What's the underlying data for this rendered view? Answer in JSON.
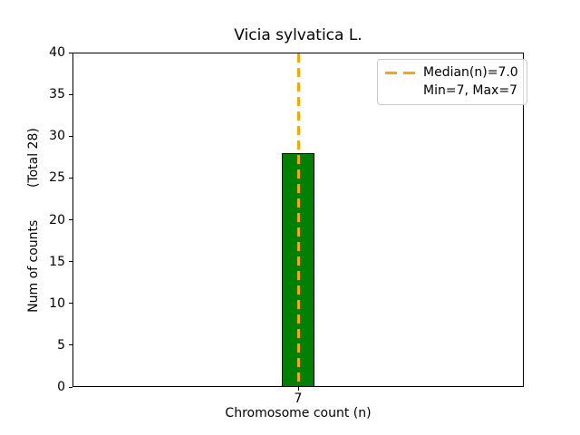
{
  "chart_data": {
    "type": "bar",
    "title": "Vicia sylvatica L.",
    "xlabel": "Chromosome count (n)",
    "ylabel": "Num of counts        (Total 28)",
    "x": [
      7
    ],
    "values": [
      28
    ],
    "bar_width": 0.8,
    "xlim": [
      1.5,
      12.5
    ],
    "ylim": [
      0,
      40
    ],
    "xticks": [
      7
    ],
    "yticks": [
      0,
      5,
      10,
      15,
      20,
      25,
      30,
      35,
      40
    ],
    "grid": false,
    "median": 7.0,
    "min": 7,
    "max": 7,
    "total": 28,
    "legend": {
      "position": "upper-right",
      "entries": [
        {
          "label": "Median(n)=7.0",
          "marker": "dashed-line"
        },
        {
          "label": "Min=7, Max=7",
          "marker": "none"
        }
      ]
    },
    "colors": {
      "bar_fill": "#008000",
      "bar_edge": "#000000",
      "median_line": "#FFA500",
      "legend_border": "#CCCCCC",
      "text": "#000000",
      "background": "#FFFFFF"
    }
  }
}
